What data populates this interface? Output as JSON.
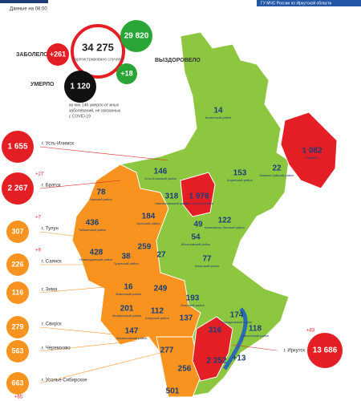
{
  "header": {
    "time": "Данные на 08:00",
    "source": "ГУ МЧС России по Иркутской области"
  },
  "summary": {
    "infected_label": "ЗАБОЛЕЛО",
    "infected_delta": "+261",
    "total": "34 275",
    "total_caption": "зарегистрировано случаев",
    "recovered": "29 820",
    "recovered_label": "ВЫЗДОРОВЕЛО",
    "recovered_delta": "+18",
    "died_label": "УМЕРЛО",
    "died": "1 120",
    "note": [
      "из них 146 умерло от иных",
      "заболеваний, не связанных",
      "с COVID-19"
    ]
  },
  "cities": [
    {
      "value": "1 655",
      "name": "г. Усть-Илимск"
    },
    {
      "value": "2 267",
      "delta": "+27",
      "name": "г. Братск"
    },
    {
      "value": "307",
      "delta": "+7",
      "name": "г. Тулун"
    },
    {
      "value": "226",
      "delta": "+9",
      "name": "г. Саянск"
    },
    {
      "value": "116",
      "name": "г. Зима"
    },
    {
      "value": "279",
      "name": "г. Свирск"
    },
    {
      "value": "563",
      "name": "г. Черемхово"
    },
    {
      "value": "663",
      "name": "г. Усолье-Сибирское"
    }
  ],
  "irkutsk": {
    "value": "13 686",
    "delta": "+83",
    "name": "г. Иркутск"
  },
  "bottom_delta": "+65",
  "districts": [
    {
      "value": "14",
      "name": "Катангский район"
    },
    {
      "value": "1 082",
      "name": "Бодайбо"
    },
    {
      "value": "153",
      "name": "Киренский район"
    },
    {
      "value": "22",
      "name": "Мамско-Чуйский район"
    },
    {
      "value": "146",
      "name": "Усть-Илимский район"
    },
    {
      "value": "318",
      "name": "Нижнеилимский район"
    },
    {
      "value": "1 976",
      "name": "Усть-Кутский район"
    },
    {
      "value": "49"
    },
    {
      "value": "122",
      "name": "Казачинско-Ленский район"
    },
    {
      "value": "54",
      "name": "Жигаловский район"
    },
    {
      "value": "77",
      "name": "Качугский район"
    },
    {
      "value": "78",
      "name": "Чунский район"
    },
    {
      "value": "184",
      "name": "Братский район"
    },
    {
      "value": "436",
      "name": "Тайшетский район"
    },
    {
      "value": "428",
      "name": "Нижнеудинский район"
    },
    {
      "value": "38",
      "name": "Тулунский район"
    },
    {
      "value": "259"
    },
    {
      "value": "27"
    },
    {
      "value": "16",
      "name": "Зиминский район"
    },
    {
      "value": "249"
    },
    {
      "value": "193",
      "name": "Осинский район"
    },
    {
      "value": "201",
      "name": "Заларинский район"
    },
    {
      "value": "112",
      "name": "Аларский район"
    },
    {
      "value": "137"
    },
    {
      "value": "174",
      "name": "Баяндаевский район"
    },
    {
      "value": "118",
      "name": "Ольхонский район"
    },
    {
      "value": "147",
      "name": "Черемховский район"
    },
    {
      "value": "277"
    },
    {
      "value": "316"
    },
    {
      "value": "2 252"
    },
    {
      "value": "+13"
    },
    {
      "value": "256"
    },
    {
      "value": "501"
    }
  ]
}
